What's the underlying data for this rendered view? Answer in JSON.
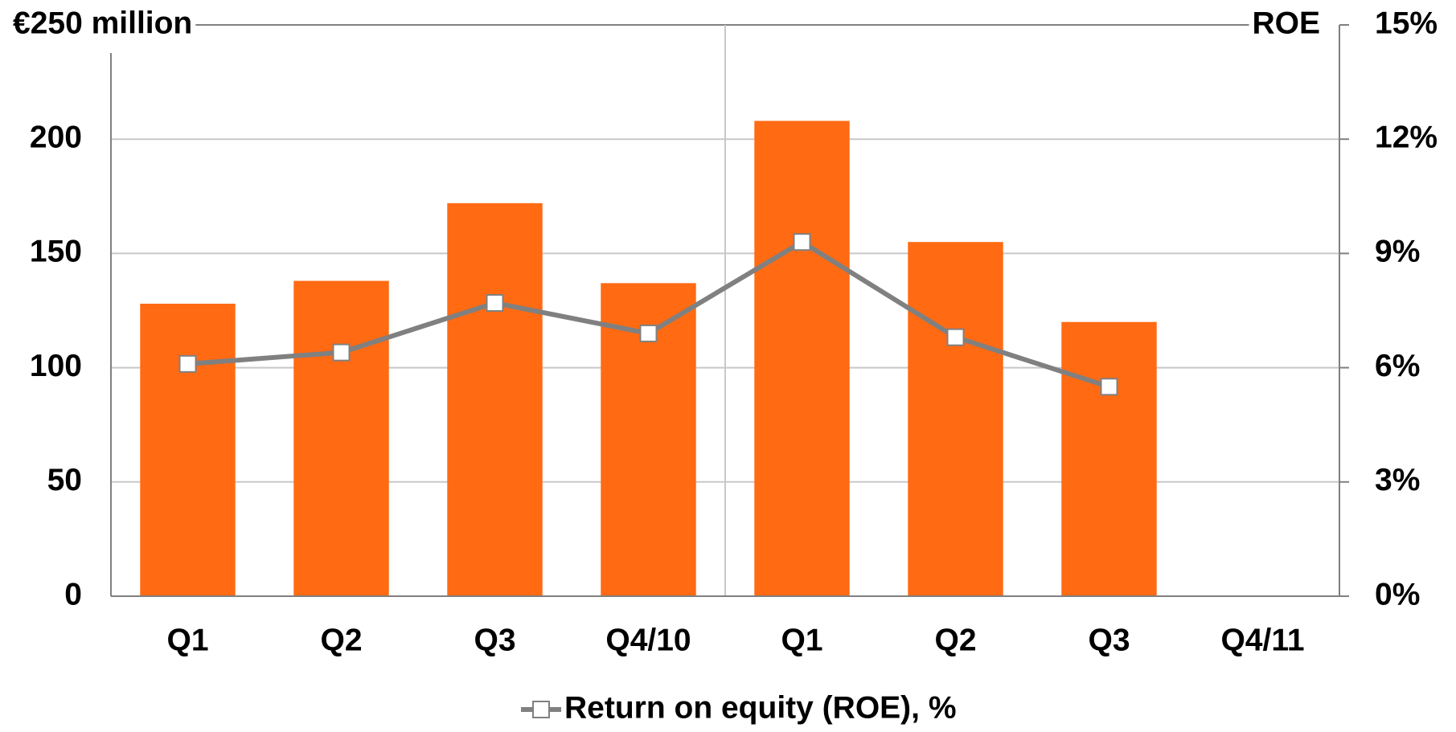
{
  "chart_data": {
    "type": "bar",
    "categories": [
      "Q1",
      "Q2",
      "Q3",
      "Q4/10",
      "Q1",
      "Q2",
      "Q3",
      "Q4/11"
    ],
    "series": [
      {
        "type": "bar",
        "color": "#ff6a13",
        "values": [
          128,
          138,
          172,
          137,
          208,
          155,
          120,
          null
        ]
      },
      {
        "type": "line",
        "name": "Return on equity (ROE), %",
        "color": "#808080",
        "axis": "y2",
        "values": [
          6.1,
          6.4,
          7.7,
          6.9,
          9.3,
          6.8,
          5.5,
          null
        ]
      }
    ],
    "ylim": [
      0,
      250
    ],
    "yticks": [
      0,
      50,
      100,
      150,
      200,
      {
        "value": 250,
        "label": "€250 million"
      }
    ],
    "y2label": "ROE",
    "y2lim": [
      0,
      15
    ],
    "y2ticks": [
      {
        "value": 0,
        "label": "0%"
      },
      {
        "value": 3,
        "label": "3%"
      },
      {
        "value": 6,
        "label": "6%"
      },
      {
        "value": 9,
        "label": "9%"
      },
      {
        "value": 12,
        "label": "12%"
      },
      {
        "value": 15,
        "label": "15%"
      }
    ],
    "grid": true,
    "legend": "bottom"
  }
}
